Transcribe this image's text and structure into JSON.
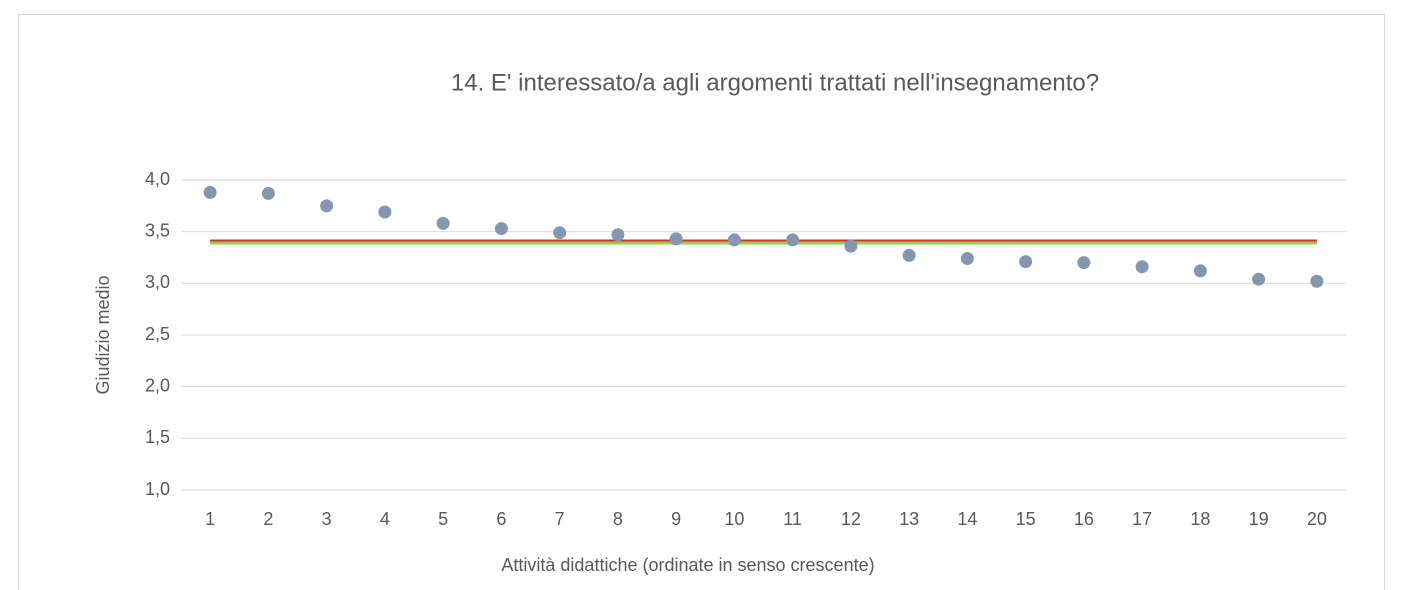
{
  "chart_data": {
    "type": "scatter",
    "title": "14. E' interessato/a agli argomenti trattati nell'insegnamento?",
    "x_label": "Attività didattiche (ordinate in senso crescente)",
    "y_label": "Giudizio medio",
    "categories": [
      "1",
      "2",
      "3",
      "4",
      "5",
      "6",
      "7",
      "8",
      "9",
      "10",
      "11",
      "12",
      "13",
      "14",
      "15",
      "16",
      "17",
      "18",
      "19",
      "20"
    ],
    "series": [
      {
        "color": "#8497b0",
        "style": "markers",
        "values": [
          3.88,
          3.87,
          3.75,
          3.69,
          3.58,
          3.53,
          3.49,
          3.47,
          3.43,
          3.42,
          3.42,
          3.36,
          3.27,
          3.24,
          3.21,
          3.2,
          3.16,
          3.12,
          3.04,
          3.02
        ]
      },
      {
        "color": "#e0302a",
        "style": "line",
        "values": [
          3.41,
          3.41,
          3.41,
          3.41,
          3.41,
          3.41,
          3.41,
          3.41,
          3.41,
          3.41,
          3.41,
          3.41,
          3.41,
          3.41,
          3.41,
          3.41,
          3.41,
          3.41,
          3.41,
          3.41
        ]
      },
      {
        "color": "#92d050",
        "style": "line",
        "values": [
          3.39,
          3.39,
          3.39,
          3.39,
          3.39,
          3.39,
          3.39,
          3.39,
          3.39,
          3.39,
          3.39,
          3.39,
          3.39,
          3.39,
          3.39,
          3.39,
          3.39,
          3.39,
          3.39,
          3.39
        ]
      }
    ],
    "ylim": [
      1,
      4
    ],
    "yticks": [
      {
        "value": 1,
        "label": "1,0"
      },
      {
        "value": 1.5,
        "label": "1,5"
      },
      {
        "value": 2,
        "label": "2,0"
      },
      {
        "value": 2.5,
        "label": "2,5"
      },
      {
        "value": 3,
        "label": "3,0"
      },
      {
        "value": 3.5,
        "label": "3,5"
      },
      {
        "value": 4,
        "label": "4,0"
      }
    ],
    "grid": true
  }
}
